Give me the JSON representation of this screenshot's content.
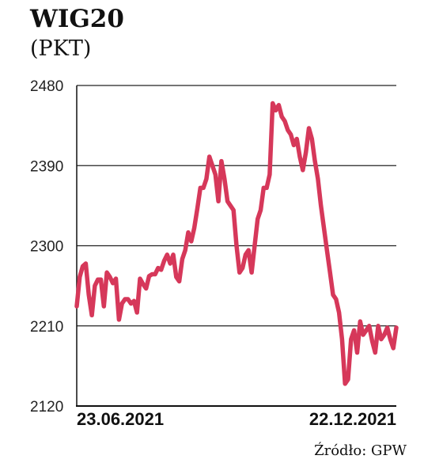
{
  "chart_data": {
    "type": "line",
    "title": "WIG20",
    "unit": "(PKT)",
    "source": "Źródło: GPW",
    "ylim": [
      2120,
      2480
    ],
    "yticks": [
      2480,
      2390,
      2300,
      2210,
      2120
    ],
    "xlabels": [
      "23.06.2021",
      "22.12.2021"
    ],
    "grid": "horizontal",
    "line_color": "#d6385a",
    "series": [
      {
        "values": [
          2232,
          2265,
          2277,
          2280,
          2245,
          2222,
          2255,
          2262,
          2262,
          2232,
          2270,
          2265,
          2258,
          2263,
          2217,
          2235,
          2240,
          2240,
          2235,
          2238,
          2225,
          2263,
          2257,
          2252,
          2266,
          2268,
          2268,
          2275,
          2273,
          2283,
          2290,
          2280,
          2290,
          2265,
          2260,
          2285,
          2295,
          2315,
          2305,
          2320,
          2342,
          2365,
          2365,
          2375,
          2400,
          2390,
          2380,
          2350,
          2395,
          2375,
          2350,
          2345,
          2340,
          2300,
          2270,
          2275,
          2290,
          2295,
          2270,
          2300,
          2330,
          2340,
          2365,
          2365,
          2380,
          2460,
          2452,
          2458,
          2445,
          2440,
          2430,
          2425,
          2413,
          2420,
          2400,
          2385,
          2405,
          2432,
          2420,
          2395,
          2375,
          2345,
          2320,
          2295,
          2270,
          2245,
          2240,
          2225,
          2195,
          2145,
          2150,
          2195,
          2205,
          2180,
          2215,
          2200,
          2205,
          2210,
          2193,
          2180,
          2210,
          2195,
          2200,
          2208,
          2195,
          2185,
          2208
        ]
      }
    ]
  }
}
